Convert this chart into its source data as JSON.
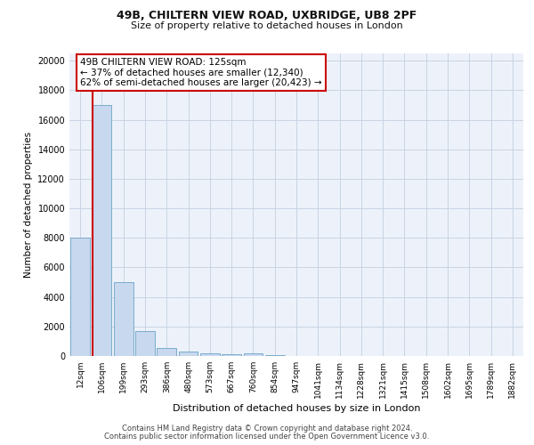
{
  "title_line1": "49B, CHILTERN VIEW ROAD, UXBRIDGE, UB8 2PF",
  "title_line2": "Size of property relative to detached houses in London",
  "xlabel": "Distribution of detached houses by size in London",
  "ylabel": "Number of detached properties",
  "footer_line1": "Contains HM Land Registry data © Crown copyright and database right 2024.",
  "footer_line2": "Contains public sector information licensed under the Open Government Licence v3.0.",
  "annotation_line1": "49B CHILTERN VIEW ROAD: 125sqm",
  "annotation_line2": "← 37% of detached houses are smaller (12,340)",
  "annotation_line3": "62% of semi-detached houses are larger (20,423) →",
  "bar_labels": [
    "12sqm",
    "106sqm",
    "199sqm",
    "293sqm",
    "386sqm",
    "480sqm",
    "573sqm",
    "667sqm",
    "760sqm",
    "854sqm",
    "947sqm",
    "1041sqm",
    "1134sqm",
    "1228sqm",
    "1321sqm",
    "1415sqm",
    "1508sqm",
    "1602sqm",
    "1695sqm",
    "1789sqm",
    "1882sqm"
  ],
  "bar_values": [
    8000,
    17000,
    5000,
    1700,
    550,
    320,
    200,
    140,
    180,
    50,
    30,
    20,
    20,
    10,
    10,
    5,
    5,
    5,
    5,
    5,
    5
  ],
  "bar_color": "#c8d8ee",
  "bar_edge_color": "#7aaccc",
  "grid_color": "#c8d4e4",
  "vline_color": "#cc0000",
  "vline_x_index": 1,
  "annotation_box_edgecolor": "#cc0000",
  "ylim_max": 20500,
  "yticks": [
    0,
    2000,
    4000,
    6000,
    8000,
    10000,
    12000,
    14000,
    16000,
    18000,
    20000
  ],
  "background_color": "#edf2fa",
  "title1_fontsize": 9,
  "title2_fontsize": 8,
  "ylabel_fontsize": 7.5,
  "xlabel_fontsize": 8,
  "tick_fontsize": 7,
  "annotation_fontsize": 7.5
}
